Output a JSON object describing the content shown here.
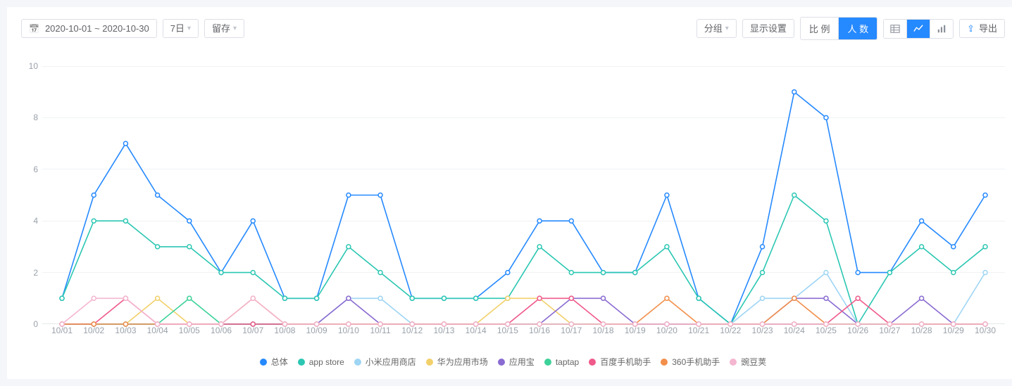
{
  "toolbar": {
    "date_range": "2020-10-01 ~ 2020-10-30",
    "period": "7日",
    "retention": "留存",
    "group": "分组",
    "display_settings": "显示设置",
    "seg_ratio": "比 例",
    "seg_count": "人 数",
    "export": "导出"
  },
  "chart": {
    "type": "line",
    "ylim": [
      0,
      10
    ],
    "ytick_step": 2,
    "axis_color": "#9aa1a9",
    "grid_color": "#f0f2f5",
    "background_color": "#ffffff",
    "marker_radius": 3,
    "line_width": 1.6,
    "x_labels": [
      "10/01",
      "10/02",
      "10/03",
      "10/04",
      "10/05",
      "10/06",
      "10/07",
      "10/08",
      "10/09",
      "10/10",
      "10/11",
      "10/12",
      "10/13",
      "10/14",
      "10/15",
      "10/16",
      "10/17",
      "10/18",
      "10/19",
      "10/20",
      "10/21",
      "10/22",
      "10/23",
      "10/24",
      "10/25",
      "10/26",
      "10/27",
      "10/28",
      "10/29",
      "10/30"
    ],
    "series": [
      {
        "name": "总体",
        "color": "#2589ff",
        "values": [
          1,
          5,
          7,
          5,
          4,
          2,
          4,
          1,
          1,
          5,
          5,
          1,
          1,
          1,
          2,
          4,
          4,
          2,
          2,
          5,
          1,
          0,
          3,
          9,
          8,
          2,
          2,
          4,
          3,
          5
        ]
      },
      {
        "name": "app store",
        "color": "#2bc7b2",
        "values": [
          1,
          4,
          4,
          3,
          3,
          2,
          2,
          1,
          1,
          3,
          2,
          1,
          1,
          1,
          1,
          3,
          2,
          2,
          2,
          3,
          1,
          0,
          2,
          5,
          4,
          0,
          2,
          3,
          2,
          3
        ]
      },
      {
        "name": "小米应用商店",
        "color": "#9ed5f4",
        "values": [
          0,
          0,
          0,
          0,
          0,
          0,
          0,
          0,
          0,
          1,
          1,
          0,
          0,
          0,
          0,
          0,
          0,
          0,
          0,
          0,
          0,
          0,
          1,
          1,
          2,
          0,
          0,
          0,
          0,
          2
        ]
      },
      {
        "name": "华为应用市场",
        "color": "#f2d06b",
        "values": [
          0,
          0,
          0,
          1,
          0,
          0,
          0,
          0,
          0,
          0,
          0,
          0,
          0,
          0,
          1,
          1,
          0,
          0,
          0,
          0,
          0,
          0,
          0,
          0,
          0,
          0,
          0,
          0,
          0,
          0
        ]
      },
      {
        "name": "应用宝",
        "color": "#8a6bd1",
        "values": [
          0,
          0,
          0,
          0,
          0,
          0,
          0,
          0,
          0,
          1,
          0,
          0,
          0,
          0,
          0,
          0,
          1,
          1,
          0,
          0,
          0,
          0,
          0,
          1,
          1,
          0,
          0,
          1,
          0,
          0
        ]
      },
      {
        "name": "taptap",
        "color": "#3dd29a",
        "values": [
          0,
          0,
          0,
          0,
          1,
          0,
          0,
          0,
          0,
          0,
          0,
          0,
          0,
          0,
          0,
          0,
          0,
          0,
          0,
          0,
          0,
          0,
          0,
          0,
          0,
          0,
          0,
          0,
          0,
          0
        ]
      },
      {
        "name": "百度手机助手",
        "color": "#ef5a8a",
        "values": [
          0,
          0,
          1,
          0,
          0,
          0,
          0,
          0,
          0,
          0,
          0,
          0,
          0,
          0,
          0,
          1,
          1,
          0,
          0,
          0,
          0,
          0,
          0,
          0,
          0,
          1,
          0,
          0,
          0,
          0
        ]
      },
      {
        "name": "360手机助手",
        "color": "#f28f4b",
        "values": [
          0,
          0,
          0,
          0,
          0,
          0,
          1,
          0,
          0,
          0,
          0,
          0,
          0,
          0,
          0,
          0,
          0,
          0,
          0,
          1,
          0,
          0,
          0,
          1,
          0,
          0,
          0,
          0,
          0,
          0
        ]
      },
      {
        "name": "豌豆荚",
        "color": "#f4b6d0",
        "values": [
          0,
          1,
          1,
          0,
          0,
          0,
          1,
          0,
          0,
          0,
          0,
          0,
          0,
          0,
          0,
          0,
          0,
          0,
          0,
          0,
          0,
          0,
          0,
          0,
          0,
          0,
          0,
          0,
          0,
          0
        ]
      }
    ]
  }
}
